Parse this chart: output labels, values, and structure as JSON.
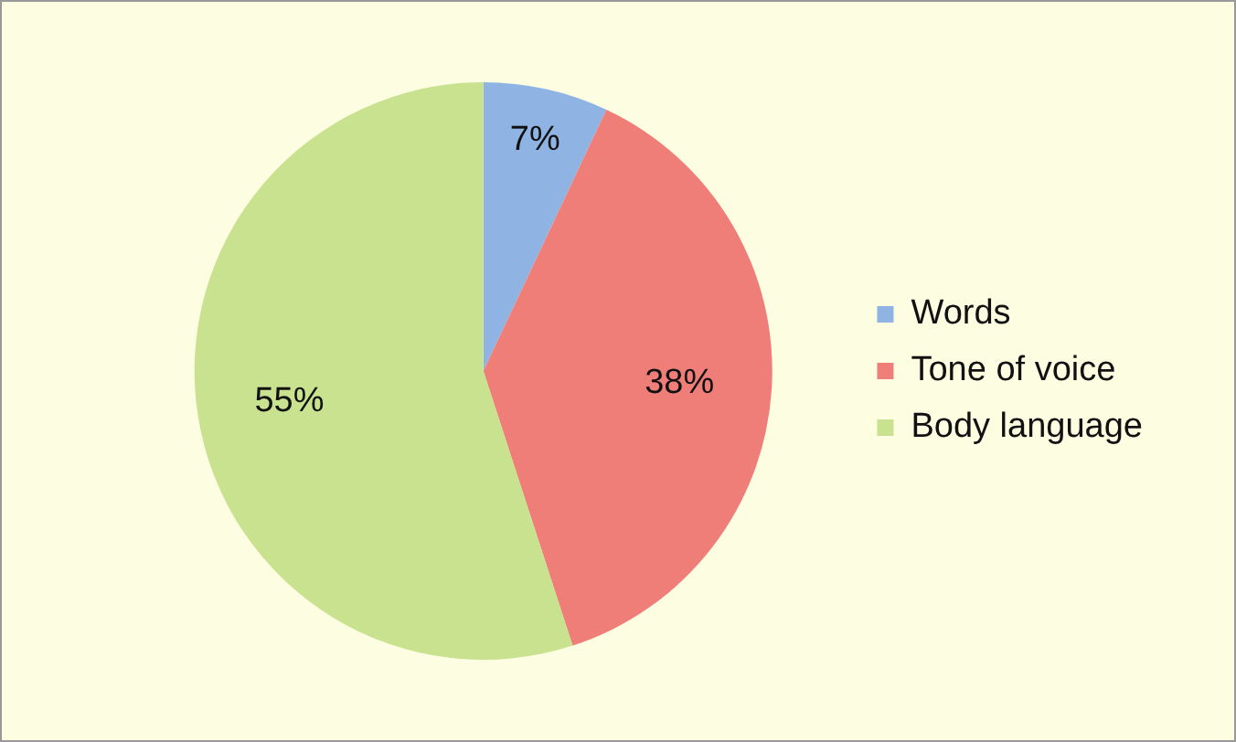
{
  "chart_data": {
    "type": "pie",
    "categories": [
      "Words",
      "Tone of voice",
      "Body language"
    ],
    "values": [
      7,
      38,
      55
    ],
    "value_labels": [
      "7%",
      "38%",
      "55%"
    ],
    "colors": [
      "#8fb4e3",
      "#f07e78",
      "#c9e28f"
    ],
    "legend": "right"
  }
}
